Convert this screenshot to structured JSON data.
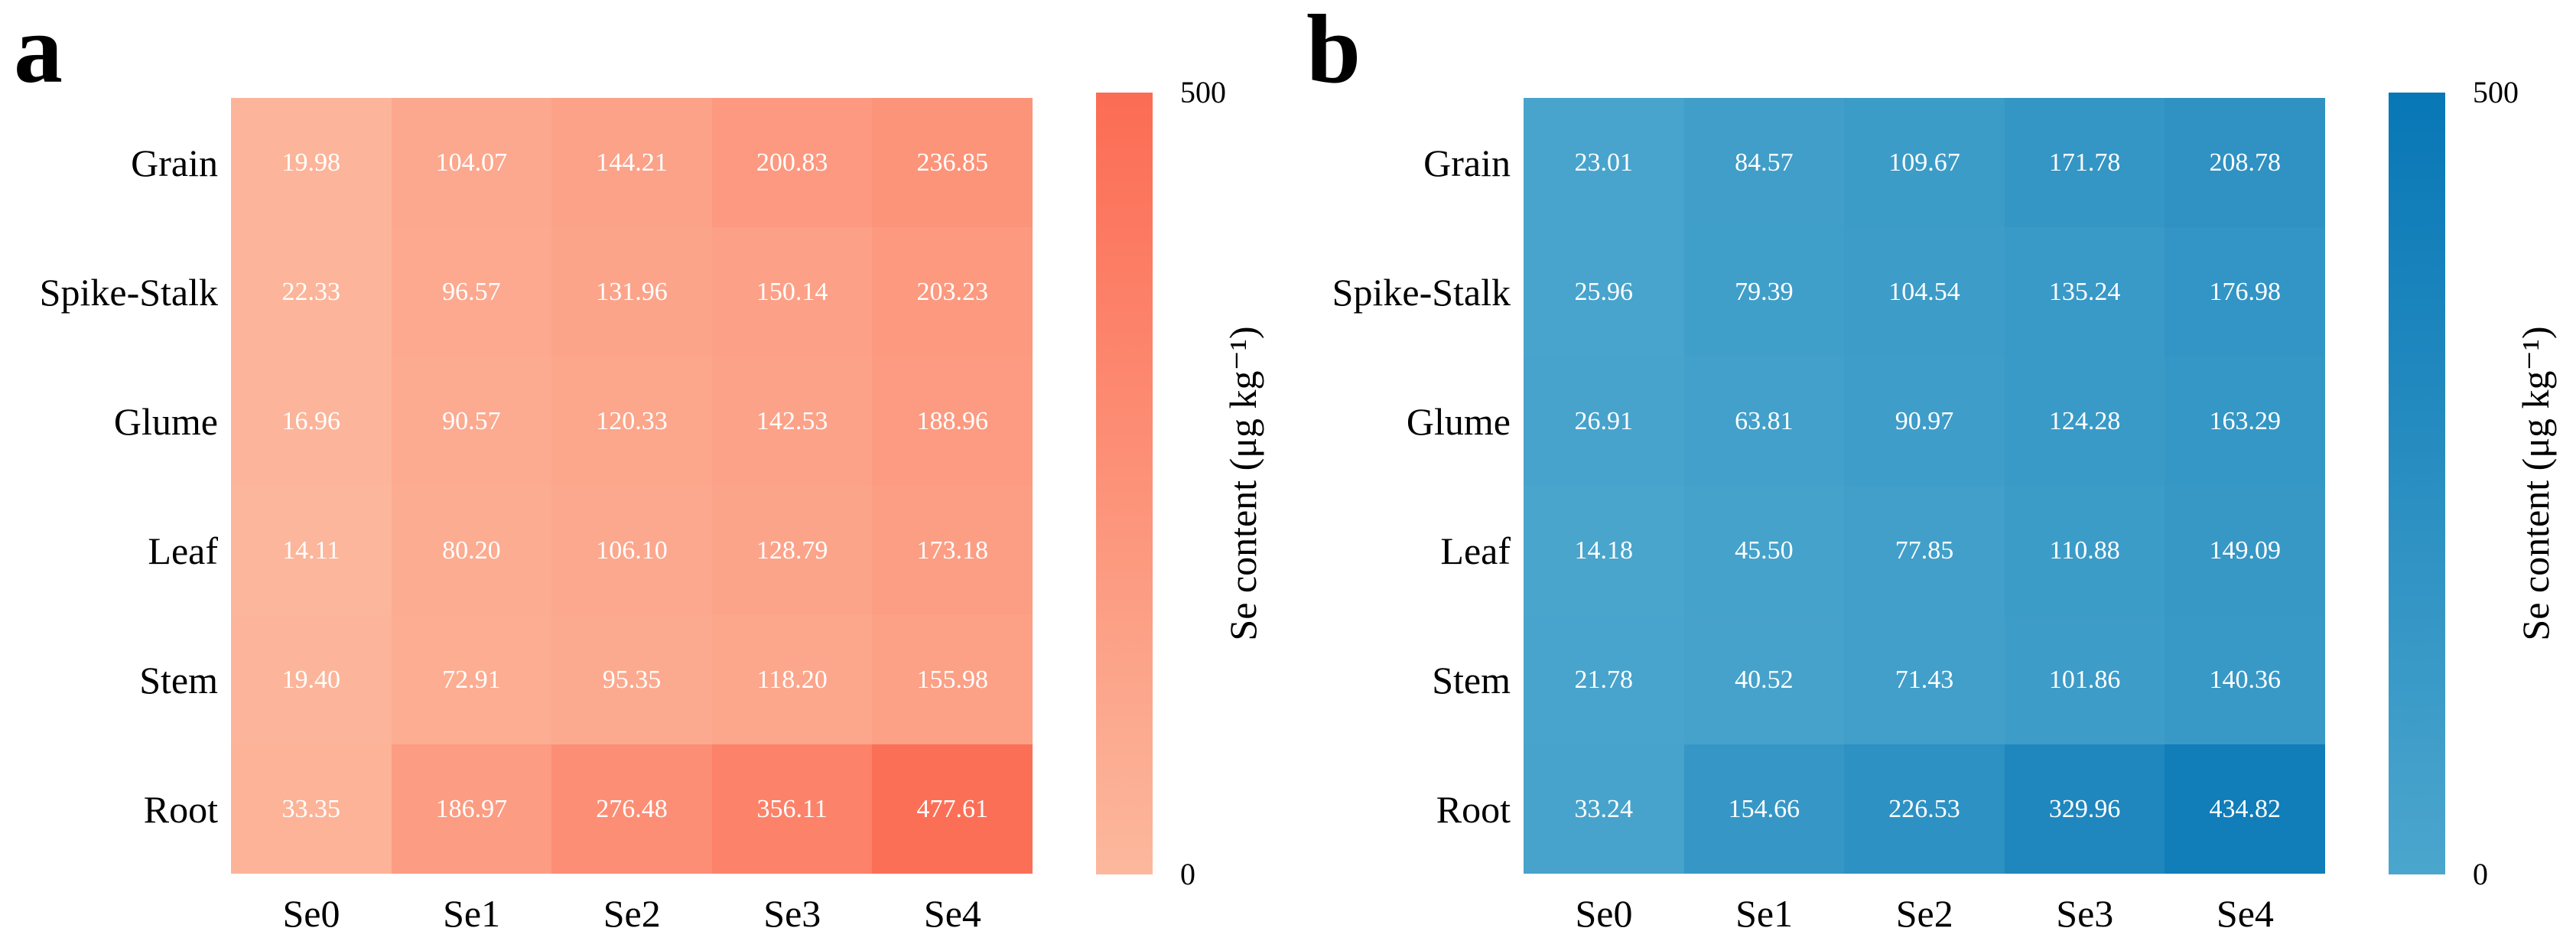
{
  "figure": {
    "background": "#ffffff",
    "text_color": "#000000",
    "cell_text_color": "#ffffff"
  },
  "chart_data": [
    {
      "type": "heatmap",
      "panel_label": "a",
      "rows": [
        "Grain",
        "Spike-Stalk",
        "Glume",
        "Leaf",
        "Stem",
        "Root"
      ],
      "columns": [
        "Se0",
        "Se1",
        "Se2",
        "Se3",
        "Se4"
      ],
      "values": [
        [
          19.98,
          104.07,
          144.21,
          200.83,
          236.85
        ],
        [
          22.33,
          96.57,
          131.96,
          150.14,
          203.23
        ],
        [
          16.96,
          90.57,
          120.33,
          142.53,
          188.96
        ],
        [
          14.11,
          80.2,
          106.1,
          128.79,
          173.18
        ],
        [
          19.4,
          72.91,
          95.35,
          118.2,
          155.98
        ],
        [
          33.35,
          186.97,
          276.48,
          356.11,
          477.61
        ]
      ],
      "value_labels": [
        [
          "19.98",
          "104.07",
          "144.21",
          "200.83",
          "236.85"
        ],
        [
          "22.33",
          "96.57",
          "131.96",
          "150.14",
          "203.23"
        ],
        [
          "16.96",
          "90.57",
          "120.33",
          "142.53",
          "188.96"
        ],
        [
          "14.11",
          "80.20",
          "106.10",
          "128.79",
          "173.18"
        ],
        [
          "19.40",
          "72.91",
          "95.35",
          "118.20",
          "155.98"
        ],
        [
          "33.35",
          "186.97",
          "276.48",
          "356.11",
          "477.61"
        ]
      ],
      "colorbar": {
        "title": "Se content (μg kg⁻¹)",
        "vmin": 0,
        "vmax": 500,
        "min_label": "0",
        "max_label": "500",
        "color_min": "#fcb89d",
        "color_max": "#fc6c54"
      }
    },
    {
      "type": "heatmap",
      "panel_label": "b",
      "rows": [
        "Grain",
        "Spike-Stalk",
        "Glume",
        "Leaf",
        "Stem",
        "Root"
      ],
      "columns": [
        "Se0",
        "Se1",
        "Se2",
        "Se3",
        "Se4"
      ],
      "values": [
        [
          23.01,
          84.57,
          109.67,
          171.78,
          208.78
        ],
        [
          25.96,
          79.39,
          104.54,
          135.24,
          176.98
        ],
        [
          26.91,
          63.81,
          90.97,
          124.28,
          163.29
        ],
        [
          14.18,
          45.5,
          77.85,
          110.88,
          149.09
        ],
        [
          21.78,
          40.52,
          71.43,
          101.86,
          140.36
        ],
        [
          33.24,
          154.66,
          226.53,
          329.96,
          434.82
        ]
      ],
      "value_labels": [
        [
          "23.01",
          "84.57",
          "109.67",
          "171.78",
          "208.78"
        ],
        [
          "25.96",
          "79.39",
          "104.54",
          "135.24",
          "176.98"
        ],
        [
          "26.91",
          "63.81",
          "90.97",
          "124.28",
          "163.29"
        ],
        [
          "14.18",
          "45.50",
          "77.85",
          "110.88",
          "149.09"
        ],
        [
          "21.78",
          "40.52",
          "71.43",
          "101.86",
          "140.36"
        ],
        [
          "33.24",
          "154.66",
          "226.53",
          "329.96",
          "434.82"
        ]
      ],
      "colorbar": {
        "title": "Se content (μg kg⁻¹)",
        "vmin": 0,
        "vmax": 500,
        "min_label": "0",
        "max_label": "500",
        "color_min": "#4ba6cd",
        "color_max": "#0877b6"
      }
    }
  ]
}
